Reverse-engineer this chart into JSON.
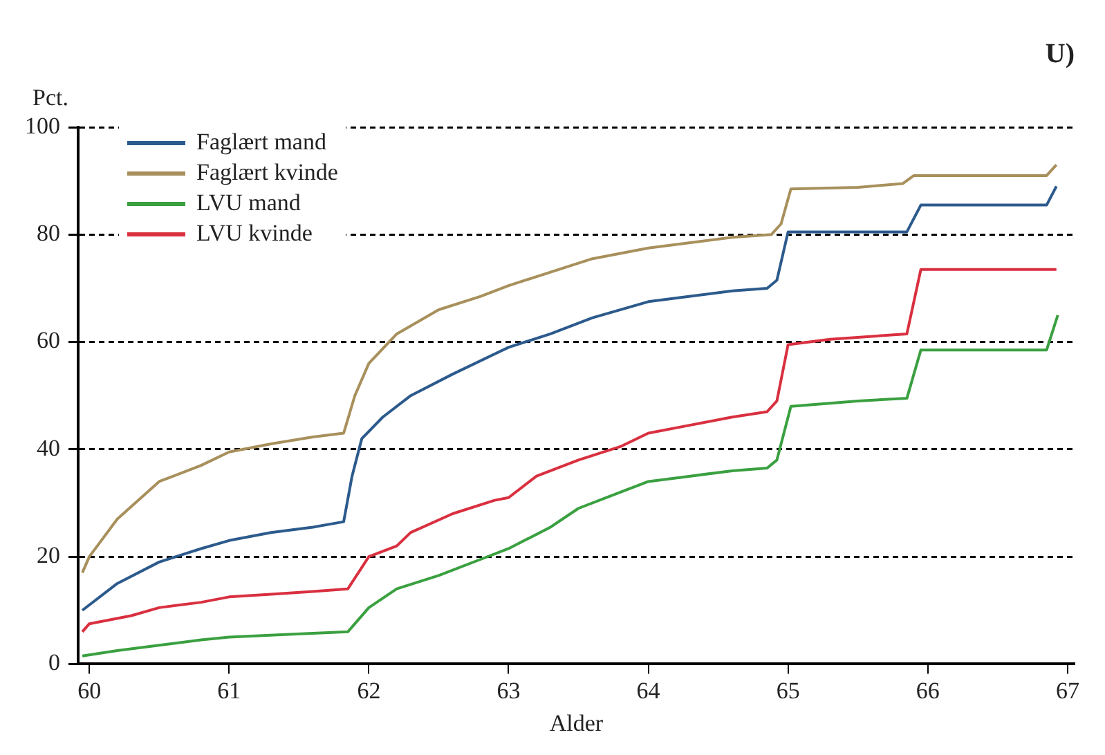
{
  "chart_data": {
    "type": "line",
    "title": "U)",
    "xlabel": "Alder",
    "ylabel": "Pct.",
    "xlim": [
      59.92,
      67.05
    ],
    "xticks": [
      60,
      61,
      62,
      63,
      64,
      65,
      66,
      67
    ],
    "ylim": [
      0,
      100
    ],
    "yticks": [
      0,
      20,
      40,
      60,
      80,
      100
    ],
    "grid": "y",
    "legend": "top left",
    "marker": "none",
    "line_style": "solid",
    "series": [
      {
        "name": "Faglært mand",
        "color": "#2c5a8c",
        "x": [
          59.95,
          60.2,
          60.5,
          60.8,
          61.0,
          61.3,
          61.6,
          61.82,
          61.88,
          61.95,
          62.1,
          62.3,
          62.6,
          63.0,
          63.3,
          63.6,
          64.0,
          64.3,
          64.6,
          64.85,
          64.92,
          65.0,
          65.85,
          65.95,
          66.85,
          66.92
        ],
        "values": [
          10,
          15,
          19,
          21.5,
          23,
          24.5,
          25.5,
          26.5,
          35,
          42,
          46,
          50,
          54,
          59,
          61.5,
          64.5,
          67.5,
          68.5,
          69.5,
          70,
          71.5,
          80.5,
          80.5,
          85.5,
          85.5,
          89
        ]
      },
      {
        "name": "Faglært kvinde",
        "color": "#a8905c",
        "x": [
          59.95,
          60.0,
          60.2,
          60.5,
          60.8,
          61.0,
          61.3,
          61.6,
          61.82,
          61.9,
          62.0,
          62.2,
          62.5,
          62.8,
          63.0,
          63.3,
          63.6,
          64.0,
          64.3,
          64.6,
          64.88,
          64.95,
          65.02,
          65.5,
          65.82,
          65.9,
          66.5,
          66.85,
          66.92
        ],
        "values": [
          17,
          20,
          27,
          34,
          37,
          39.5,
          41,
          42.3,
          43,
          50,
          56,
          61.5,
          66,
          68.5,
          70.5,
          73,
          75.5,
          77.5,
          78.5,
          79.5,
          80,
          82,
          88.5,
          88.8,
          89.5,
          91,
          91,
          91,
          93
        ]
      },
      {
        "name": "LVU mand",
        "color": "#3aa040",
        "x": [
          59.95,
          60.2,
          60.5,
          60.8,
          61.0,
          61.4,
          61.85,
          62.0,
          62.2,
          62.5,
          62.8,
          63.0,
          63.3,
          63.5,
          63.8,
          64.0,
          64.3,
          64.6,
          64.85,
          64.92,
          65.02,
          65.5,
          65.85,
          65.95,
          66.85,
          66.93
        ],
        "values": [
          1.5,
          2.5,
          3.5,
          4.5,
          5,
          5.5,
          6,
          10.5,
          14,
          16.5,
          19.5,
          21.5,
          25.5,
          29,
          32,
          34,
          35,
          36,
          36.5,
          38,
          48,
          49,
          49.5,
          58.5,
          58.5,
          65
        ]
      },
      {
        "name": "LVU kvinde",
        "color": "#d93040",
        "x": [
          59.95,
          60.0,
          60.3,
          60.5,
          60.8,
          61.0,
          61.3,
          61.6,
          61.85,
          62.0,
          62.2,
          62.3,
          62.6,
          62.9,
          63.0,
          63.2,
          63.5,
          63.8,
          64.0,
          64.3,
          64.6,
          64.85,
          64.92,
          65.0,
          65.3,
          65.85,
          65.95,
          66.92
        ],
        "values": [
          6,
          7.5,
          9,
          10.5,
          11.5,
          12.5,
          13,
          13.5,
          14,
          20,
          22,
          24.5,
          28,
          30.5,
          31,
          35,
          38,
          40.5,
          43,
          44.5,
          46,
          47,
          49,
          59.5,
          60.5,
          61.5,
          73.5,
          73.5
        ]
      }
    ]
  }
}
